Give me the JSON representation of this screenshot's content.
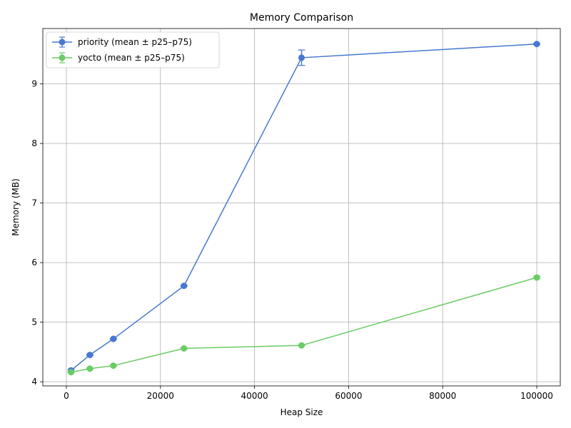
{
  "chart_data": {
    "type": "line",
    "title": "Memory Comparison",
    "xlabel": "Heap Size",
    "ylabel": "Memory (MB)",
    "xlim": [
      -5000,
      105000
    ],
    "ylim": [
      3.93,
      9.93
    ],
    "xticks": [
      0,
      20000,
      40000,
      60000,
      80000,
      100000
    ],
    "yticks": [
      4,
      5,
      6,
      7,
      8,
      9
    ],
    "grid": true,
    "legend_position": "top-left",
    "x": [
      1000,
      5000,
      10000,
      25000,
      50000,
      100000
    ],
    "series": [
      {
        "name": "priority (mean ± p25–p75)",
        "color": "#4878cf",
        "values": [
          4.19,
          4.45,
          4.72,
          5.61,
          9.44,
          9.67
        ],
        "err_low": [
          4.17,
          4.44,
          4.71,
          5.6,
          9.31,
          9.66
        ],
        "err_high": [
          4.21,
          4.46,
          4.73,
          5.62,
          9.57,
          9.68
        ]
      },
      {
        "name": "yocto (mean ± p25–p75)",
        "color": "#6acc65",
        "values": [
          4.16,
          4.22,
          4.27,
          4.56,
          4.61,
          5.75
        ],
        "err_low": [
          4.15,
          4.21,
          4.26,
          4.55,
          4.6,
          5.73
        ],
        "err_high": [
          4.17,
          4.23,
          4.28,
          4.57,
          4.62,
          5.77
        ]
      }
    ]
  }
}
